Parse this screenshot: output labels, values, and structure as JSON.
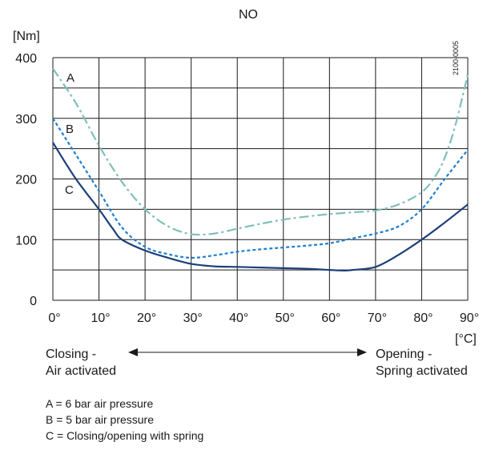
{
  "chart_data": {
    "type": "line",
    "title": "NO",
    "ylabel": "[Nm]",
    "xlabel": "[°C]",
    "side_code": "2100-0005",
    "xlim": [
      0,
      90
    ],
    "ylim": [
      0,
      400
    ],
    "x_ticks": [
      0,
      10,
      20,
      30,
      40,
      50,
      60,
      70,
      80,
      90
    ],
    "x_tick_labels": [
      "0°",
      "10°",
      "20°",
      "30°",
      "40°",
      "50°",
      "60°",
      "70°",
      "80°",
      "90°"
    ],
    "y_ticks": [
      0,
      100,
      200,
      300,
      400
    ],
    "y_tick_labels": [
      "0",
      "100",
      "200",
      "300",
      "400"
    ],
    "grid": true,
    "series": [
      {
        "name": "A",
        "color": "#7fbfb8",
        "style": "dash-dot",
        "x": [
          0,
          5,
          10,
          15,
          20,
          25,
          30,
          35,
          40,
          45,
          50,
          55,
          60,
          65,
          70,
          75,
          80,
          83,
          85,
          87,
          89,
          90
        ],
        "y": [
          382,
          325,
          255,
          195,
          150,
          122,
          109,
          110,
          118,
          126,
          133,
          138,
          142,
          145,
          148,
          158,
          178,
          205,
          235,
          280,
          340,
          372
        ]
      },
      {
        "name": "B",
        "color": "#1f7fcf",
        "style": "dotted",
        "x": [
          0,
          5,
          10,
          15,
          20,
          25,
          30,
          35,
          40,
          45,
          50,
          55,
          60,
          65,
          70,
          75,
          80,
          85,
          90
        ],
        "y": [
          300,
          240,
          180,
          120,
          88,
          76,
          70,
          74,
          80,
          84,
          87,
          90,
          94,
          102,
          110,
          122,
          150,
          200,
          248
        ]
      },
      {
        "name": "C",
        "color": "#1d3f7a",
        "style": "solid",
        "x": [
          0,
          5,
          10,
          13,
          15,
          20,
          25,
          30,
          35,
          40,
          45,
          50,
          55,
          60,
          63,
          65,
          70,
          75,
          80,
          85,
          90
        ],
        "y": [
          260,
          200,
          150,
          118,
          100,
          82,
          70,
          60,
          56,
          55,
          54,
          53,
          52,
          50,
          49,
          50,
          55,
          75,
          100,
          128,
          158
        ]
      }
    ]
  },
  "annotations": {
    "closing_line1": "Closing -",
    "closing_line2": "Air activated",
    "opening_line1": "Opening -",
    "opening_line2": "Spring activated"
  },
  "legend_notes": [
    "A = 6 bar air pressure",
    "B = 5 bar air pressure",
    "C = Closing/opening with spring"
  ]
}
